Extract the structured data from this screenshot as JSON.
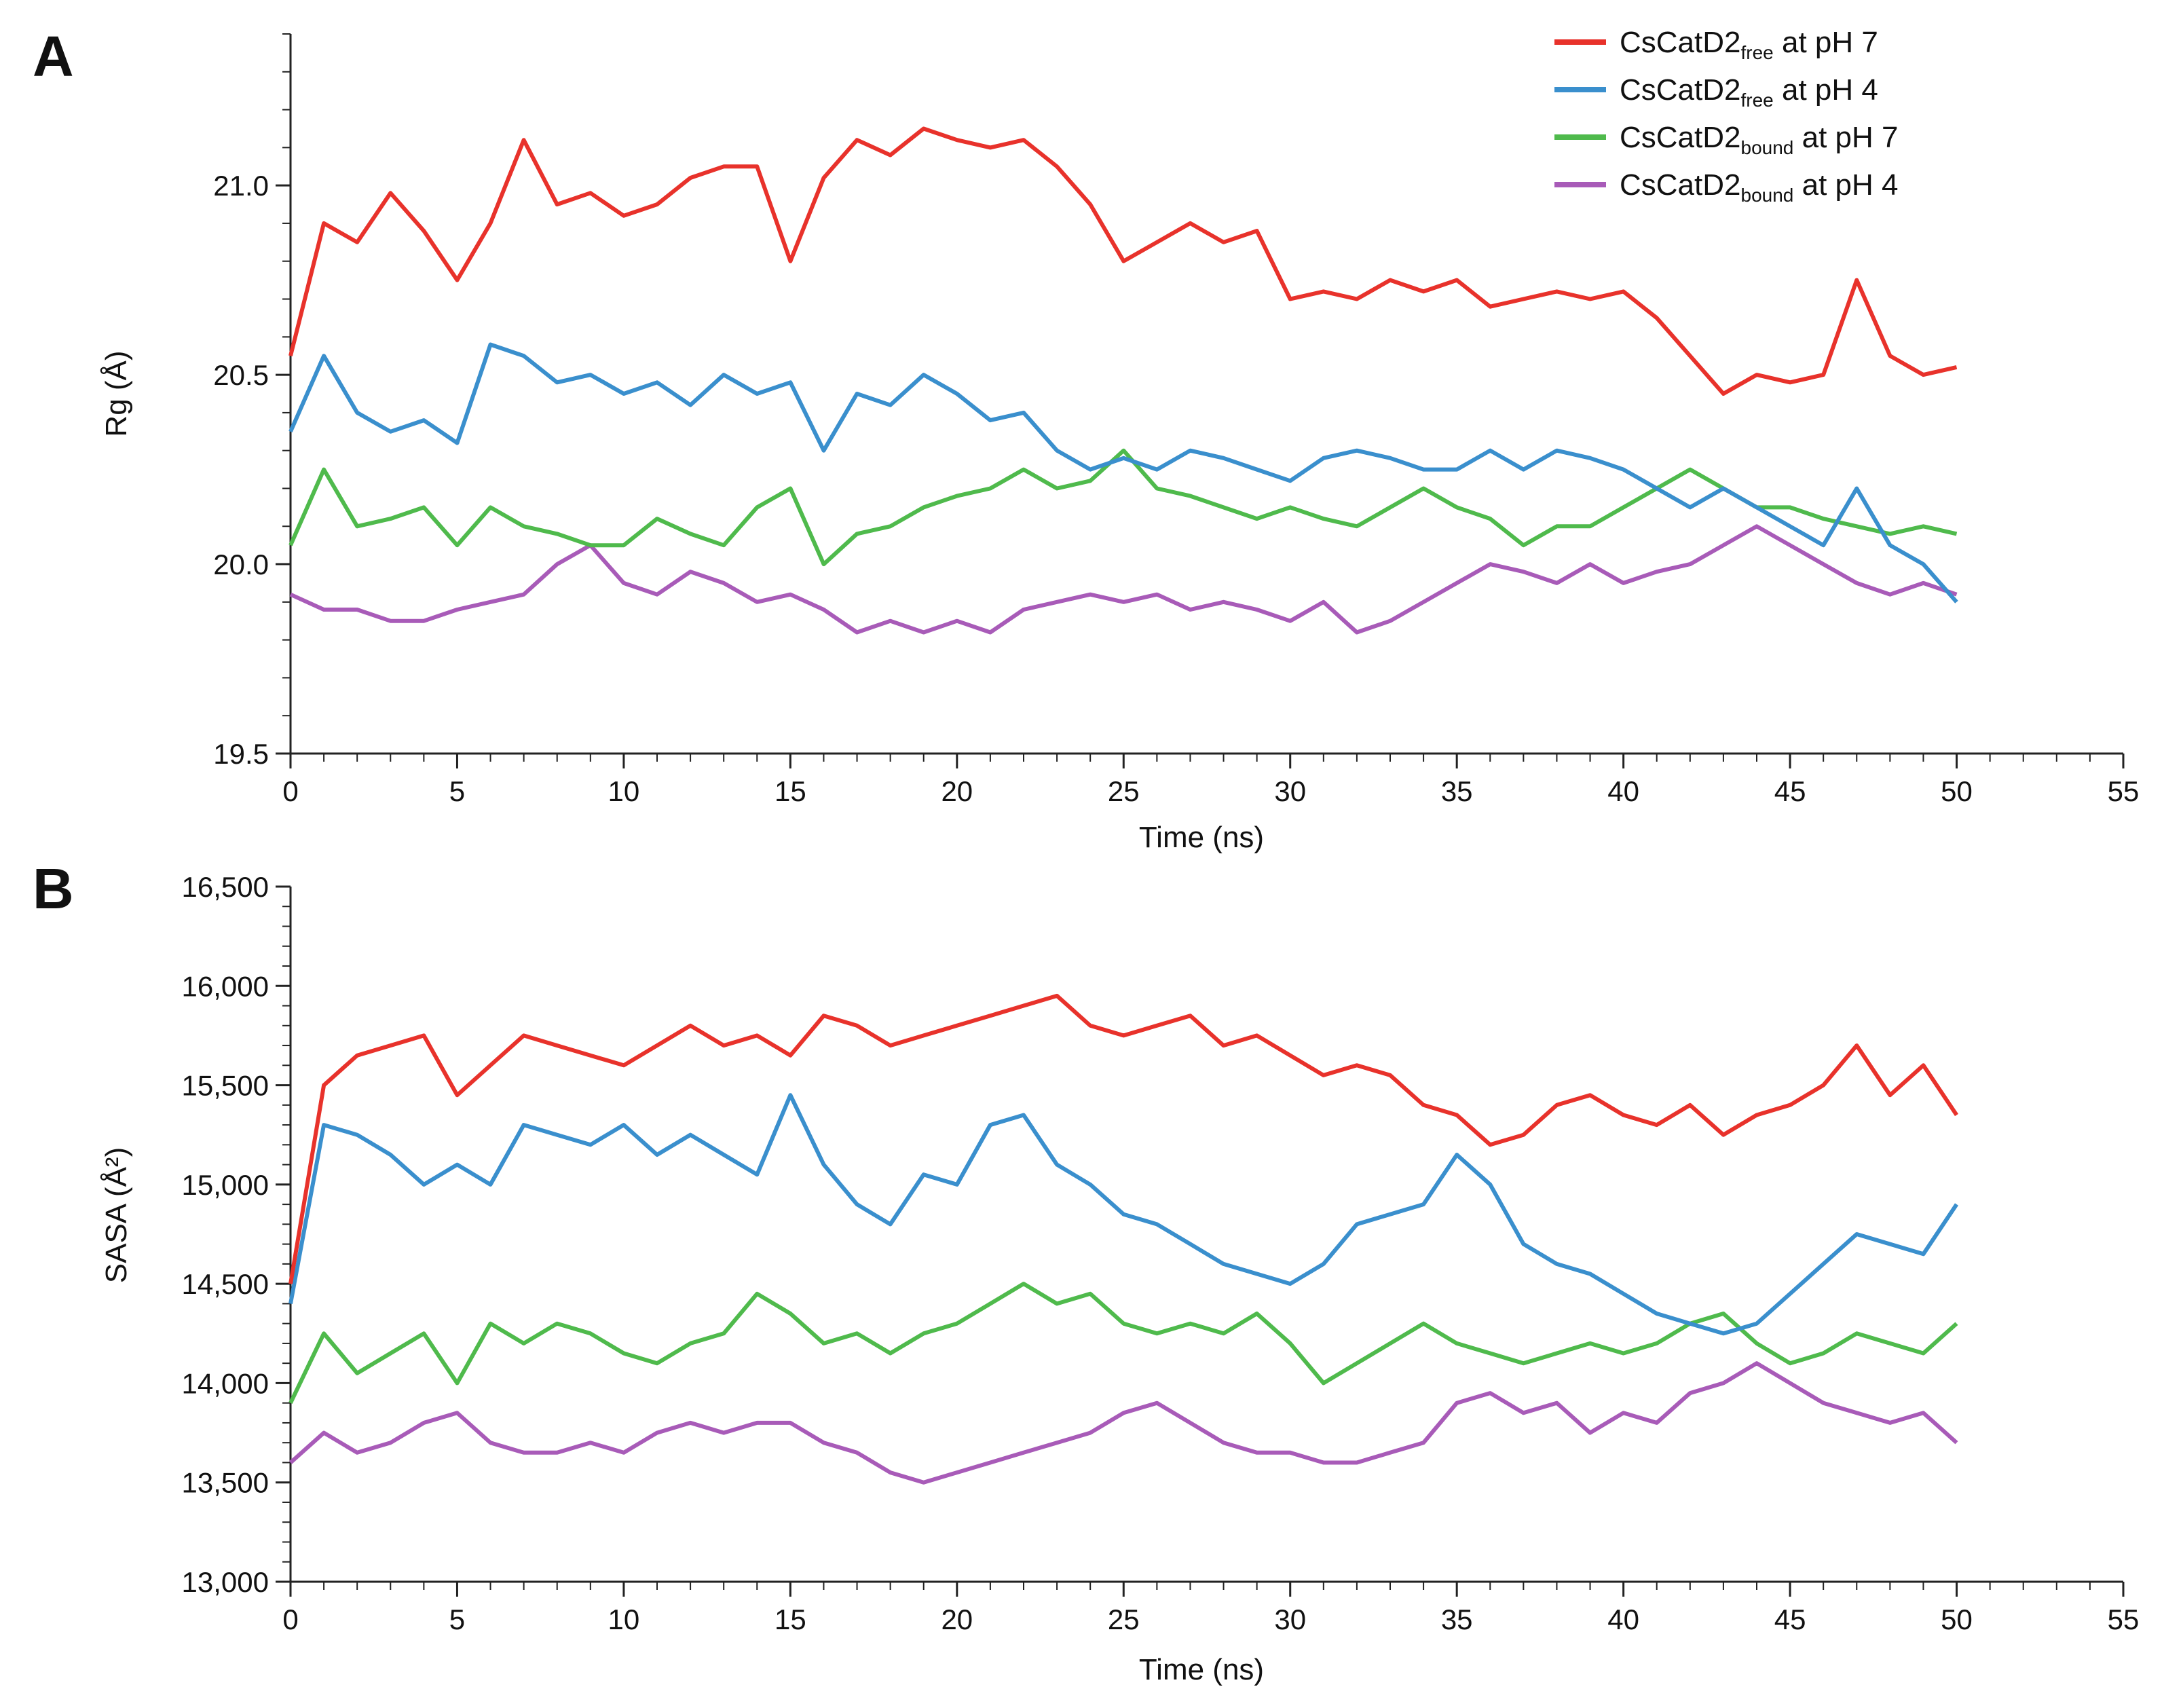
{
  "figure": {
    "colors": {
      "pH7_free": "#e8322b",
      "pH4_free": "#3a8fcd",
      "pH7_bound": "#4fba4c",
      "pH4_bound": "#a85bb8"
    },
    "legend": [
      {
        "key": "pH7_free",
        "base": "CsCatD2",
        "sub": "free",
        "rest": " at pH 7"
      },
      {
        "key": "pH4_free",
        "base": "CsCatD2",
        "sub": "free",
        "rest": " at pH 4"
      },
      {
        "key": "pH7_bound",
        "base": "CsCatD2",
        "sub": "bound",
        "rest": " at pH 7"
      },
      {
        "key": "pH4_bound",
        "base": "CsCatD2",
        "sub": "bound",
        "rest": " at pH 4"
      }
    ]
  },
  "chart_data": [
    {
      "panel": "A",
      "type": "line",
      "title": "",
      "xlabel": "Time (ns)",
      "ylabel": "Rg (Å)",
      "xlim": [
        0,
        55
      ],
      "ylim": [
        19.5,
        21.4
      ],
      "xticks": [
        "0",
        "5",
        "10",
        "15",
        "20",
        "25",
        "30",
        "35",
        "40",
        "45",
        "50",
        "55"
      ],
      "yticks": [
        "19.5",
        "20.0",
        "20.5",
        "21.0"
      ],
      "x": [
        0,
        1,
        2,
        3,
        4,
        5,
        6,
        7,
        8,
        9,
        10,
        11,
        12,
        13,
        14,
        15,
        16,
        17,
        18,
        19,
        20,
        21,
        22,
        23,
        24,
        25,
        26,
        27,
        28,
        29,
        30,
        31,
        32,
        33,
        34,
        35,
        36,
        37,
        38,
        39,
        40,
        41,
        42,
        43,
        44,
        45,
        46,
        47,
        48,
        49,
        50
      ],
      "series": [
        {
          "key": "pH7_free",
          "values": [
            20.55,
            20.9,
            20.85,
            20.98,
            20.88,
            20.75,
            20.9,
            21.12,
            20.95,
            20.98,
            20.92,
            20.95,
            21.02,
            21.05,
            21.05,
            20.8,
            21.02,
            21.12,
            21.08,
            21.15,
            21.12,
            21.1,
            21.12,
            21.05,
            20.95,
            20.8,
            20.85,
            20.9,
            20.85,
            20.88,
            20.7,
            20.72,
            20.7,
            20.75,
            20.72,
            20.75,
            20.68,
            20.7,
            20.72,
            20.7,
            20.72,
            20.65,
            20.55,
            20.45,
            20.5,
            20.48,
            20.5,
            20.75,
            20.55,
            20.5,
            20.52
          ]
        },
        {
          "key": "pH4_free",
          "values": [
            20.35,
            20.55,
            20.4,
            20.35,
            20.38,
            20.32,
            20.58,
            20.55,
            20.48,
            20.5,
            20.45,
            20.48,
            20.42,
            20.5,
            20.45,
            20.48,
            20.3,
            20.45,
            20.42,
            20.5,
            20.45,
            20.38,
            20.4,
            20.3,
            20.25,
            20.28,
            20.25,
            20.3,
            20.28,
            20.25,
            20.22,
            20.28,
            20.3,
            20.28,
            20.25,
            20.25,
            20.3,
            20.25,
            20.3,
            20.28,
            20.25,
            20.2,
            20.15,
            20.2,
            20.15,
            20.1,
            20.05,
            20.2,
            20.05,
            20.0,
            19.9
          ]
        },
        {
          "key": "pH7_bound",
          "values": [
            20.05,
            20.25,
            20.1,
            20.12,
            20.15,
            20.05,
            20.15,
            20.1,
            20.08,
            20.05,
            20.05,
            20.12,
            20.08,
            20.05,
            20.15,
            20.2,
            20.0,
            20.08,
            20.1,
            20.15,
            20.18,
            20.2,
            20.25,
            20.2,
            20.22,
            20.3,
            20.2,
            20.18,
            20.15,
            20.12,
            20.15,
            20.12,
            20.1,
            20.15,
            20.2,
            20.15,
            20.12,
            20.05,
            20.1,
            20.1,
            20.15,
            20.2,
            20.25,
            20.2,
            20.15,
            20.15,
            20.12,
            20.1,
            20.08,
            20.1,
            20.08
          ]
        },
        {
          "key": "pH4_bound",
          "values": [
            19.92,
            19.88,
            19.88,
            19.85,
            19.85,
            19.88,
            19.9,
            19.92,
            20.0,
            20.05,
            19.95,
            19.92,
            19.98,
            19.95,
            19.9,
            19.92,
            19.88,
            19.82,
            19.85,
            19.82,
            19.85,
            19.82,
            19.88,
            19.9,
            19.92,
            19.9,
            19.92,
            19.88,
            19.9,
            19.88,
            19.85,
            19.9,
            19.82,
            19.85,
            19.9,
            19.95,
            20.0,
            19.98,
            19.95,
            20.0,
            19.95,
            19.98,
            20.0,
            20.05,
            20.1,
            20.05,
            20.0,
            19.95,
            19.92,
            19.95,
            19.92
          ]
        }
      ]
    },
    {
      "panel": "B",
      "type": "line",
      "title": "",
      "xlabel": "Time (ns)",
      "ylabel": "SASA (Å²)",
      "xlim": [
        0,
        55
      ],
      "ylim": [
        13000,
        16500
      ],
      "xticks": [
        "0",
        "5",
        "10",
        "15",
        "20",
        "25",
        "30",
        "35",
        "40",
        "45",
        "50",
        "55"
      ],
      "yticks": [
        "13,000",
        "13,500",
        "14,000",
        "14,500",
        "15,000",
        "15,500",
        "16,000",
        "16,500"
      ],
      "x": [
        0,
        1,
        2,
        3,
        4,
        5,
        6,
        7,
        8,
        9,
        10,
        11,
        12,
        13,
        14,
        15,
        16,
        17,
        18,
        19,
        20,
        21,
        22,
        23,
        24,
        25,
        26,
        27,
        28,
        29,
        30,
        31,
        32,
        33,
        34,
        35,
        36,
        37,
        38,
        39,
        40,
        41,
        42,
        43,
        44,
        45,
        46,
        47,
        48,
        49,
        50
      ],
      "series": [
        {
          "key": "pH7_free",
          "values": [
            14500,
            15500,
            15650,
            15700,
            15750,
            15450,
            15600,
            15750,
            15700,
            15650,
            15600,
            15700,
            15800,
            15700,
            15750,
            15650,
            15850,
            15800,
            15700,
            15750,
            15800,
            15850,
            15900,
            15950,
            15800,
            15750,
            15800,
            15850,
            15700,
            15750,
            15650,
            15550,
            15600,
            15550,
            15400,
            15350,
            15200,
            15250,
            15400,
            15450,
            15350,
            15300,
            15400,
            15250,
            15350,
            15400,
            15500,
            15700,
            15450,
            15600,
            15350
          ]
        },
        {
          "key": "pH4_free",
          "values": [
            14400,
            15300,
            15250,
            15150,
            15000,
            15100,
            15000,
            15300,
            15250,
            15200,
            15300,
            15150,
            15250,
            15150,
            15050,
            15450,
            15100,
            14900,
            14800,
            15050,
            15000,
            15300,
            15350,
            15100,
            15000,
            14850,
            14800,
            14700,
            14600,
            14550,
            14500,
            14600,
            14800,
            14850,
            14900,
            15150,
            15000,
            14700,
            14600,
            14550,
            14450,
            14350,
            14300,
            14250,
            14300,
            14450,
            14600,
            14750,
            14700,
            14650,
            14900
          ]
        },
        {
          "key": "pH7_bound",
          "values": [
            13900,
            14250,
            14050,
            14150,
            14250,
            14000,
            14300,
            14200,
            14300,
            14250,
            14150,
            14100,
            14200,
            14250,
            14450,
            14350,
            14200,
            14250,
            14150,
            14250,
            14300,
            14400,
            14500,
            14400,
            14450,
            14300,
            14250,
            14300,
            14250,
            14350,
            14200,
            14000,
            14100,
            14200,
            14300,
            14200,
            14150,
            14100,
            14150,
            14200,
            14150,
            14200,
            14300,
            14350,
            14200,
            14100,
            14150,
            14250,
            14200,
            14150,
            14300
          ]
        },
        {
          "key": "pH4_bound",
          "values": [
            13600,
            13750,
            13650,
            13700,
            13800,
            13850,
            13700,
            13650,
            13650,
            13700,
            13650,
            13750,
            13800,
            13750,
            13800,
            13800,
            13700,
            13650,
            13550,
            13500,
            13550,
            13600,
            13650,
            13700,
            13750,
            13850,
            13900,
            13800,
            13700,
            13650,
            13650,
            13600,
            13600,
            13650,
            13700,
            13900,
            13950,
            13850,
            13900,
            13750,
            13850,
            13800,
            13950,
            14000,
            14100,
            14000,
            13900,
            13850,
            13800,
            13850,
            13700
          ]
        }
      ]
    }
  ]
}
